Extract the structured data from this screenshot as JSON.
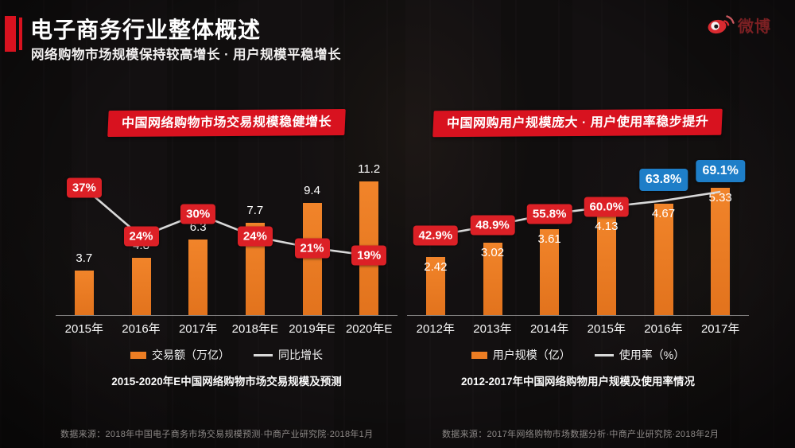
{
  "header": {
    "title": "电子商务行业整体概述",
    "subtitle": "网络购物市场规模保持较高增长 · 用户规模平稳增长",
    "logo_text": "微博"
  },
  "colors": {
    "background": "#131011",
    "accent_red": "#d8121f",
    "banner_red": "#d8121f",
    "bar_orange": "#ec7d23",
    "tag_red": "#dc2026",
    "tag_blue": "#1e7ec8",
    "line_gray": "#d9d9d9",
    "source_gray": "#8e8a88"
  },
  "chart_data": [
    {
      "type": "bar",
      "banner": "中国网络购物市场交易规模稳健增长",
      "categories": [
        "2015年",
        "2016年",
        "2017年",
        "2018年E",
        "2019年E",
        "2020年E"
      ],
      "series": [
        {
          "name": "交易额（万亿）",
          "kind": "bar",
          "values": [
            3.7,
            4.8,
            6.3,
            7.7,
            9.4,
            11.2
          ]
        },
        {
          "name": "同比增长",
          "kind": "line",
          "unit": "%",
          "values": [
            37,
            24,
            30,
            24,
            21,
            19
          ],
          "labels": [
            "37%",
            "24%",
            "30%",
            "24%",
            "21%",
            "19%"
          ],
          "label_colors": [
            "red",
            "red",
            "red",
            "red",
            "red",
            "red"
          ]
        }
      ],
      "value_label_position": "above",
      "ylim": [
        0,
        12
      ],
      "grid": false,
      "legend_position": "bottom",
      "caption": "2015-2020年E中国网络购物市场交易规模及预测",
      "source": "数据来源：2018年中国电子商务市场交易规模预测·中商产业研究院·2018年1月"
    },
    {
      "type": "bar",
      "banner": "中国网购用户规模庞大 · 用户使用率稳步提升",
      "categories": [
        "2012年",
        "2013年",
        "2014年",
        "2015年",
        "2016年",
        "2017年"
      ],
      "series": [
        {
          "name": "用户规模（亿）",
          "kind": "bar",
          "values": [
            2.42,
            3.02,
            3.61,
            4.13,
            4.67,
            5.33
          ]
        },
        {
          "name": "使用率（%）",
          "kind": "line",
          "unit": "%",
          "values": [
            42.9,
            48.9,
            55.8,
            60.0,
            63.8,
            69.1
          ],
          "labels": [
            "42.9%",
            "48.9%",
            "55.8%",
            "60.0%",
            "63.8%",
            "69.1%"
          ],
          "label_colors": [
            "red",
            "red",
            "red",
            "red",
            "blue",
            "blue"
          ]
        }
      ],
      "value_label_position": "inside",
      "ylim": [
        0,
        6
      ],
      "grid": false,
      "legend_position": "bottom",
      "caption": "2012-2017年中国网络购物用户规模及使用率情况",
      "source": "数据来源：2017年网络购物市场数据分析·中商产业研究院·2018年2月"
    }
  ]
}
